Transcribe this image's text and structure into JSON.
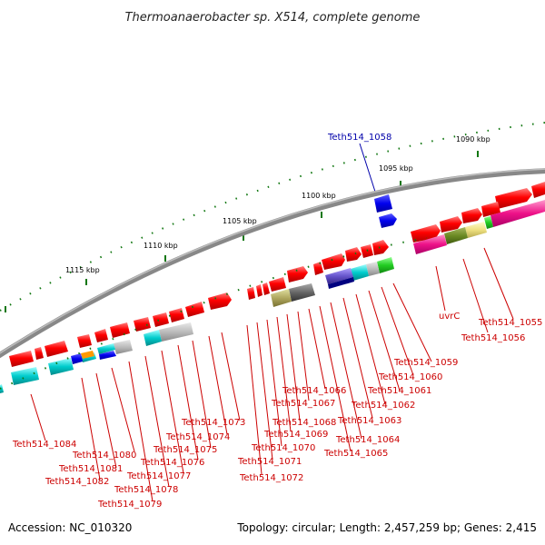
{
  "title": "Thermoanaerobacter sp. X514, complete genome",
  "footer": {
    "accession": "Accession: NC_010320",
    "topology": "Topology: circular; Length: 2,457,259 bp; Genes: 2,415"
  },
  "kbp_ticks": [
    "1090 kbp",
    "1095 kbp",
    "1100 kbp",
    "1105 kbp",
    "1110 kbp",
    "1115 kbp"
  ],
  "highlight_gene": "Teth514_1058",
  "gene_labels": [
    "uvrC",
    "Teth514_1055",
    "Teth514_1056",
    "Teth514_1059",
    "Teth514_1060",
    "Teth514_1061",
    "Teth514_1062",
    "Teth514_1063",
    "Teth514_1064",
    "Teth514_1065",
    "Teth514_1066",
    "Teth514_1067",
    "Teth514_1068",
    "Teth514_1069",
    "Teth514_1070",
    "Teth514_1071",
    "Teth514_1072",
    "Teth514_1073",
    "Teth514_1074",
    "Teth514_1075",
    "Teth514_1076",
    "Teth514_1077",
    "Teth514_1078",
    "Teth514_1079",
    "Teth514_1080",
    "Teth514_1081",
    "Teth514_1082",
    "Teth514_1084"
  ],
  "colors": {
    "gene_red": "#ff0000",
    "highlight_blue": "#0000cc",
    "label_red": "#cc0000",
    "tick_green": "#117711",
    "backbone_gray": "#777777"
  }
}
